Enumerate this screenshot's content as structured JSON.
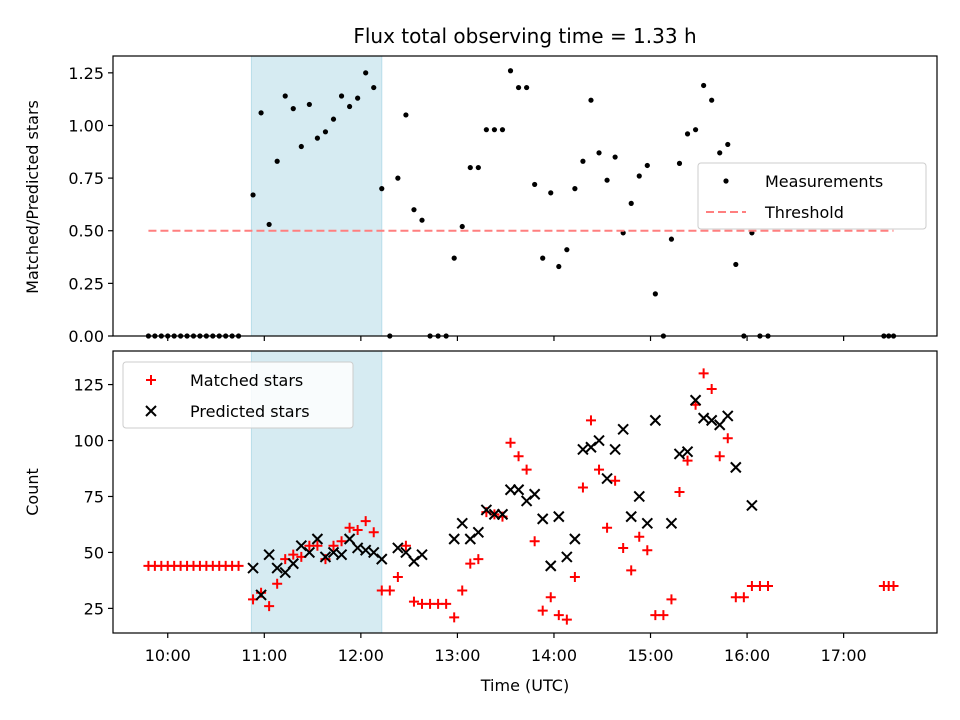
{
  "chart_data": [
    {
      "type": "scatter",
      "title": "Flux total observing time = 1.33 h",
      "xlabel": "",
      "ylabel": "Matched/Predicted stars",
      "ylim": [
        0,
        1.33
      ],
      "yticks": [
        "0.00",
        "0.25",
        "0.50",
        "0.75",
        "1.00",
        "1.25"
      ],
      "legend_position": "center-right",
      "highlight_span": [
        "10:52",
        "12:13"
      ],
      "series": [
        {
          "name": "Measurements",
          "marker": "dot",
          "color": "#000000",
          "points": [
            [
              "09:48",
              0
            ],
            [
              "09:52",
              0
            ],
            [
              "09:56",
              0
            ],
            [
              "10:00",
              0
            ],
            [
              "10:04",
              0
            ],
            [
              "10:08",
              0
            ],
            [
              "10:12",
              0
            ],
            [
              "10:16",
              0
            ],
            [
              "10:20",
              0
            ],
            [
              "10:24",
              0
            ],
            [
              "10:28",
              0
            ],
            [
              "10:32",
              0
            ],
            [
              "10:36",
              0
            ],
            [
              "10:40",
              0
            ],
            [
              "10:44",
              0
            ],
            [
              "10:53",
              0.67
            ],
            [
              "10:58",
              1.06
            ],
            [
              "11:03",
              0.53
            ],
            [
              "11:08",
              0.83
            ],
            [
              "11:13",
              1.14
            ],
            [
              "11:18",
              1.08
            ],
            [
              "11:23",
              0.9
            ],
            [
              "11:28",
              1.1
            ],
            [
              "11:33",
              0.94
            ],
            [
              "11:38",
              0.97
            ],
            [
              "11:43",
              1.03
            ],
            [
              "11:48",
              1.14
            ],
            [
              "11:53",
              1.09
            ],
            [
              "11:58",
              1.13
            ],
            [
              "12:03",
              1.25
            ],
            [
              "12:08",
              1.18
            ],
            [
              "12:13",
              0.7
            ],
            [
              "12:18",
              0
            ],
            [
              "12:23",
              0.75
            ],
            [
              "12:28",
              1.05
            ],
            [
              "12:33",
              0.6
            ],
            [
              "12:38",
              0.55
            ],
            [
              "12:43",
              0
            ],
            [
              "12:48",
              0
            ],
            [
              "12:53",
              0
            ],
            [
              "12:58",
              0.37
            ],
            [
              "13:03",
              0.52
            ],
            [
              "13:08",
              0.8
            ],
            [
              "13:13",
              0.8
            ],
            [
              "13:18",
              0.98
            ],
            [
              "13:23",
              0.98
            ],
            [
              "13:28",
              0.98
            ],
            [
              "13:33",
              1.26
            ],
            [
              "13:38",
              1.18
            ],
            [
              "13:43",
              1.18
            ],
            [
              "13:48",
              0.72
            ],
            [
              "13:53",
              0.37
            ],
            [
              "13:58",
              0.68
            ],
            [
              "14:03",
              0.33
            ],
            [
              "14:08",
              0.41
            ],
            [
              "14:13",
              0.7
            ],
            [
              "14:18",
              0.83
            ],
            [
              "14:23",
              1.12
            ],
            [
              "14:28",
              0.87
            ],
            [
              "14:33",
              0.74
            ],
            [
              "14:38",
              0.85
            ],
            [
              "14:43",
              0.49
            ],
            [
              "14:48",
              0.63
            ],
            [
              "14:53",
              0.76
            ],
            [
              "14:58",
              0.81
            ],
            [
              "15:03",
              0.2
            ],
            [
              "15:08",
              0
            ],
            [
              "15:13",
              0.46
            ],
            [
              "15:18",
              0.82
            ],
            [
              "15:23",
              0.96
            ],
            [
              "15:28",
              0.98
            ],
            [
              "15:33",
              1.19
            ],
            [
              "15:38",
              1.12
            ],
            [
              "15:43",
              0.87
            ],
            [
              "15:48",
              0.91
            ],
            [
              "15:53",
              0.34
            ],
            [
              "15:58",
              0
            ],
            [
              "16:03",
              0.49
            ],
            [
              "16:08",
              0
            ],
            [
              "16:13",
              0
            ],
            [
              "17:25",
              0
            ],
            [
              "17:28",
              0
            ],
            [
              "17:31",
              0
            ]
          ]
        },
        {
          "name": "Threshold",
          "marker": "dashed-line",
          "color": "#ff7f7f",
          "points": [
            [
              "09:48",
              0.5
            ],
            [
              "17:31",
              0.5
            ]
          ]
        }
      ]
    },
    {
      "type": "scatter",
      "title": "",
      "xlabel": "Time (UTC)",
      "ylabel": "Count",
      "ylim": [
        14,
        140
      ],
      "yticks": [
        "25",
        "50",
        "75",
        "100",
        "125"
      ],
      "xticks": [
        "10:00",
        "11:00",
        "12:00",
        "13:00",
        "14:00",
        "15:00",
        "16:00",
        "17:00"
      ],
      "legend_position": "top-left",
      "highlight_span": [
        "10:52",
        "12:13"
      ],
      "series": [
        {
          "name": "Matched stars",
          "marker": "plus",
          "color": "#ff0000",
          "points": [
            [
              "09:48",
              44
            ],
            [
              "09:52",
              44
            ],
            [
              "09:56",
              44
            ],
            [
              "10:00",
              44
            ],
            [
              "10:04",
              44
            ],
            [
              "10:08",
              44
            ],
            [
              "10:12",
              44
            ],
            [
              "10:16",
              44
            ],
            [
              "10:20",
              44
            ],
            [
              "10:24",
              44
            ],
            [
              "10:28",
              44
            ],
            [
              "10:32",
              44
            ],
            [
              "10:36",
              44
            ],
            [
              "10:40",
              44
            ],
            [
              "10:44",
              44
            ],
            [
              "10:53",
              29
            ],
            [
              "10:58",
              32
            ],
            [
              "11:03",
              26
            ],
            [
              "11:08",
              36
            ],
            [
              "11:13",
              47
            ],
            [
              "11:18",
              49
            ],
            [
              "11:23",
              48
            ],
            [
              "11:28",
              53
            ],
            [
              "11:33",
              53
            ],
            [
              "11:38",
              47
            ],
            [
              "11:43",
              53
            ],
            [
              "11:48",
              55
            ],
            [
              "11:53",
              61
            ],
            [
              "11:58",
              60
            ],
            [
              "12:03",
              64
            ],
            [
              "12:08",
              59
            ],
            [
              "12:13",
              33
            ],
            [
              "12:18",
              33
            ],
            [
              "12:23",
              39
            ],
            [
              "12:28",
              53
            ],
            [
              "12:33",
              28
            ],
            [
              "12:38",
              27
            ],
            [
              "12:43",
              27
            ],
            [
              "12:48",
              27
            ],
            [
              "12:53",
              27
            ],
            [
              "12:58",
              21
            ],
            [
              "13:03",
              33
            ],
            [
              "13:08",
              45
            ],
            [
              "13:13",
              47
            ],
            [
              "13:18",
              68
            ],
            [
              "13:23",
              67
            ],
            [
              "13:28",
              66
            ],
            [
              "13:33",
              99
            ],
            [
              "13:38",
              93
            ],
            [
              "13:43",
              87
            ],
            [
              "13:48",
              55
            ],
            [
              "13:53",
              24
            ],
            [
              "13:58",
              30
            ],
            [
              "14:03",
              22
            ],
            [
              "14:08",
              20
            ],
            [
              "14:13",
              39
            ],
            [
              "14:18",
              79
            ],
            [
              "14:23",
              109
            ],
            [
              "14:28",
              87
            ],
            [
              "14:33",
              61
            ],
            [
              "14:38",
              82
            ],
            [
              "14:43",
              52
            ],
            [
              "14:48",
              42
            ],
            [
              "14:53",
              57
            ],
            [
              "14:58",
              51
            ],
            [
              "15:03",
              22
            ],
            [
              "15:08",
              22
            ],
            [
              "15:13",
              29
            ],
            [
              "15:18",
              77
            ],
            [
              "15:23",
              91
            ],
            [
              "15:28",
              116
            ],
            [
              "15:33",
              130
            ],
            [
              "15:38",
              123
            ],
            [
              "15:43",
              93
            ],
            [
              "15:48",
              101
            ],
            [
              "15:53",
              30
            ],
            [
              "15:58",
              30
            ],
            [
              "16:03",
              35
            ],
            [
              "16:08",
              35
            ],
            [
              "16:13",
              35
            ],
            [
              "17:25",
              35
            ],
            [
              "17:28",
              35
            ],
            [
              "17:31",
              35
            ]
          ]
        },
        {
          "name": "Predicted stars",
          "marker": "x",
          "color": "#000000",
          "points": [
            [
              "10:53",
              43
            ],
            [
              "10:58",
              31
            ],
            [
              "11:03",
              49
            ],
            [
              "11:08",
              43
            ],
            [
              "11:13",
              41
            ],
            [
              "11:18",
              45
            ],
            [
              "11:23",
              53
            ],
            [
              "11:28",
              50
            ],
            [
              "11:33",
              56
            ],
            [
              "11:38",
              48
            ],
            [
              "11:43",
              50
            ],
            [
              "11:48",
              49
            ],
            [
              "11:53",
              56
            ],
            [
              "11:58",
              52
            ],
            [
              "12:03",
              51
            ],
            [
              "12:08",
              50
            ],
            [
              "12:13",
              47
            ],
            [
              "12:23",
              52
            ],
            [
              "12:28",
              50
            ],
            [
              "12:33",
              46
            ],
            [
              "12:38",
              49
            ],
            [
              "12:58",
              56
            ],
            [
              "13:03",
              63
            ],
            [
              "13:08",
              56
            ],
            [
              "13:13",
              59
            ],
            [
              "13:18",
              69
            ],
            [
              "13:23",
              67
            ],
            [
              "13:28",
              67
            ],
            [
              "13:33",
              78
            ],
            [
              "13:38",
              78
            ],
            [
              "13:43",
              73
            ],
            [
              "13:48",
              76
            ],
            [
              "13:53",
              65
            ],
            [
              "13:58",
              44
            ],
            [
              "14:03",
              66
            ],
            [
              "14:08",
              48
            ],
            [
              "14:13",
              56
            ],
            [
              "14:18",
              96
            ],
            [
              "14:23",
              97
            ],
            [
              "14:28",
              100
            ],
            [
              "14:33",
              83
            ],
            [
              "14:38",
              96
            ],
            [
              "14:43",
              105
            ],
            [
              "14:48",
              66
            ],
            [
              "14:53",
              75
            ],
            [
              "14:58",
              63
            ],
            [
              "15:03",
              109
            ],
            [
              "15:13",
              63
            ],
            [
              "15:18",
              94
            ],
            [
              "15:23",
              95
            ],
            [
              "15:28",
              118
            ],
            [
              "15:33",
              110
            ],
            [
              "15:38",
              109
            ],
            [
              "15:43",
              107
            ],
            [
              "15:48",
              111
            ],
            [
              "15:53",
              88
            ],
            [
              "16:03",
              71
            ]
          ]
        }
      ]
    }
  ]
}
